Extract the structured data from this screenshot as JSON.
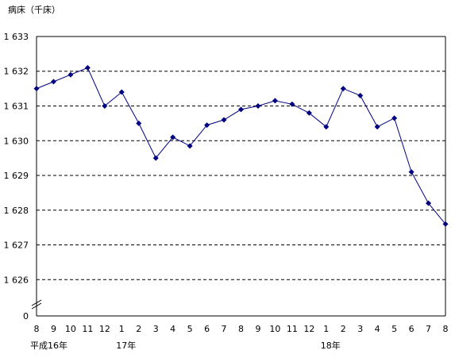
{
  "chart_data": {
    "type": "line",
    "ylabel": "病床（千床）",
    "y_tick_labels": [
      "1 626",
      "1 627",
      "1 628",
      "1 629",
      "1 630",
      "1 631",
      "1 632",
      "1 633"
    ],
    "y_zero_label": "0",
    "y_axis_break": true,
    "ylim": [
      1625.5,
      1633
    ],
    "grid": "horizontal-dashed",
    "x": [
      "8",
      "9",
      "10",
      "11",
      "12",
      "1",
      "2",
      "3",
      "4",
      "5",
      "6",
      "7",
      "8",
      "9",
      "10",
      "11",
      "12",
      "1",
      "2",
      "3",
      "4",
      "5",
      "6",
      "7",
      "8"
    ],
    "year_labels": [
      {
        "index": 0,
        "text": "平成16年"
      },
      {
        "index": 5,
        "text": "17年"
      },
      {
        "index": 17,
        "text": "18年"
      }
    ],
    "series": [
      {
        "color": "#000080",
        "marker": "diamond",
        "values": [
          1631.5,
          1631.7,
          1631.9,
          1632.1,
          1631.0,
          1631.4,
          1630.5,
          1629.5,
          1630.1,
          1629.85,
          1630.45,
          1630.6,
          1630.9,
          1631.0,
          1631.15,
          1631.05,
          1630.8,
          1630.4,
          1631.5,
          1631.3,
          1630.4,
          1630.65,
          1629.1,
          1628.2,
          1627.6
        ]
      }
    ]
  }
}
